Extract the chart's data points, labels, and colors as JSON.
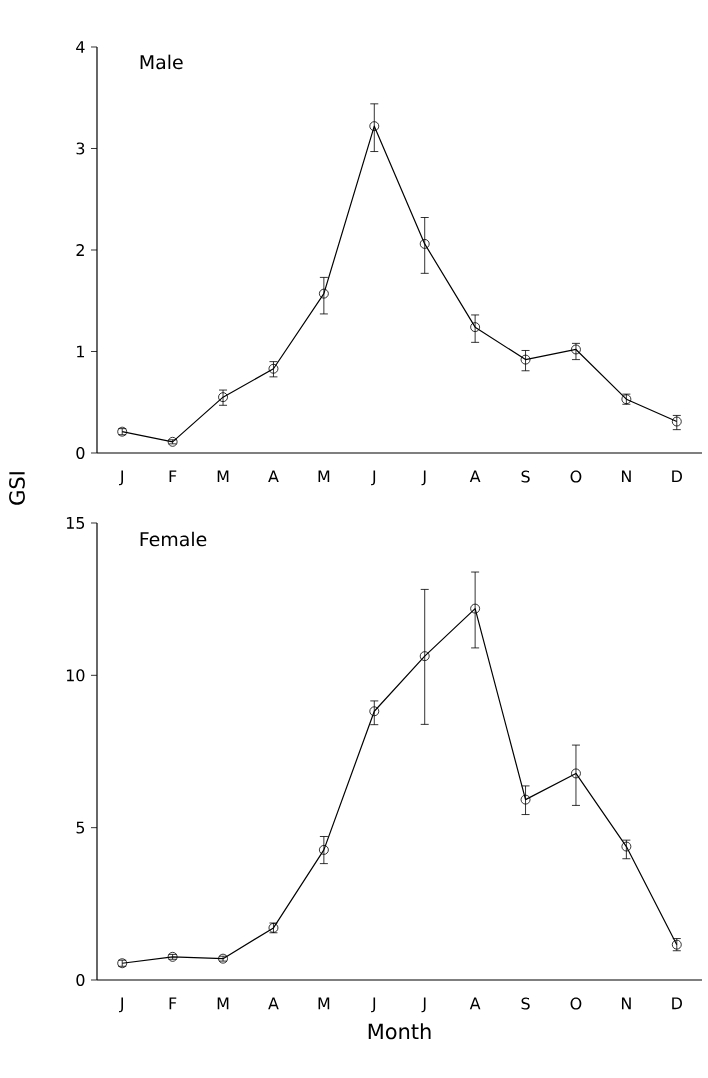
{
  "chart_data": [
    {
      "type": "line",
      "title": "Male",
      "ylabel": "GSI",
      "categories": [
        "J",
        "F",
        "M",
        "A",
        "M",
        "J",
        "J",
        "A",
        "S",
        "O",
        "N",
        "D"
      ],
      "series": [
        {
          "color": "#000000",
          "values": [
            0.21,
            0.11,
            0.55,
            0.83,
            1.57,
            3.22,
            2.06,
            1.24,
            0.92,
            1.02,
            0.53,
            0.31
          ],
          "errors": [
            [
              0.18,
              0.24
            ],
            [
              0.09,
              0.13
            ],
            [
              0.47,
              0.62
            ],
            [
              0.75,
              0.9
            ],
            [
              1.37,
              1.73
            ],
            [
              2.97,
              3.44
            ],
            [
              1.77,
              2.32
            ],
            [
              1.09,
              1.36
            ],
            [
              0.81,
              1.01
            ],
            [
              0.92,
              1.08
            ],
            [
              0.48,
              0.58
            ],
            [
              0.23,
              0.37
            ]
          ]
        }
      ],
      "ylim": [
        0,
        4
      ],
      "yticks": [
        0,
        1,
        2,
        3,
        4
      ],
      "marker": "circle",
      "line_style": "solid",
      "grid": false
    },
    {
      "type": "line",
      "title": "Female",
      "xlabel": "Month",
      "categories": [
        "J",
        "F",
        "M",
        "A",
        "M",
        "J",
        "J",
        "A",
        "S",
        "O",
        "N",
        "D"
      ],
      "series": [
        {
          "color": "#000000",
          "values": [
            0.55,
            0.76,
            0.7,
            1.71,
            4.27,
            8.82,
            10.63,
            12.19,
            5.92,
            6.78,
            4.38,
            1.16
          ],
          "errors": [
            [
              0.45,
              0.65
            ],
            [
              0.68,
              0.84
            ],
            [
              0.62,
              0.78
            ],
            [
              1.55,
              1.87
            ],
            [
              3.82,
              4.71
            ],
            [
              8.38,
              9.16
            ],
            [
              8.39,
              12.82
            ],
            [
              10.9,
              13.39
            ],
            [
              5.43,
              6.37
            ],
            [
              5.73,
              7.71
            ],
            [
              3.98,
              4.59
            ],
            [
              0.96,
              1.36
            ]
          ]
        }
      ],
      "ylim": [
        0,
        15
      ],
      "yticks": [
        0,
        5,
        10,
        15
      ],
      "marker": "circle",
      "line_style": "solid",
      "grid": false
    }
  ]
}
